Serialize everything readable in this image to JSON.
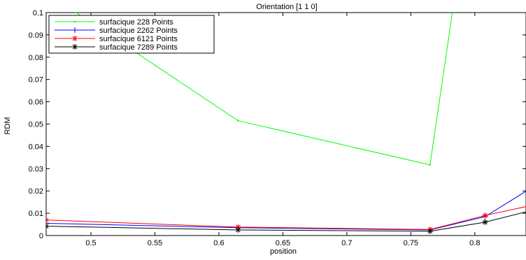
{
  "chart_data": {
    "type": "line",
    "title": "Orientation [1 1 0]",
    "xlabel": "position",
    "ylabel": "RDM",
    "xlim": [
      0.465,
      0.84
    ],
    "ylim": [
      0,
      0.1
    ],
    "x_ticks": [
      0.5,
      0.55,
      0.6,
      0.65,
      0.7,
      0.75,
      0.8
    ],
    "x_tick_labels": [
      "0.5",
      "0.55",
      "0.6",
      "0.65",
      "0.7",
      "0.75",
      "0.8"
    ],
    "y_ticks": [
      0,
      0.01,
      0.02,
      0.03,
      0.04,
      0.05,
      0.06,
      0.07,
      0.08,
      0.09,
      0.1
    ],
    "y_tick_labels": [
      "0",
      "0.01",
      "0.02",
      "0.03",
      "0.04",
      "0.05",
      "0.06",
      "0.07",
      "0.08",
      "0.09",
      "0.1"
    ],
    "grid": false,
    "legend_position": "top-left",
    "series": [
      {
        "name": "surfacique 228 Points",
        "color": "#00ff00",
        "marker": "point",
        "x": [
          0.465,
          0.615,
          0.765,
          0.808
        ],
        "y": [
          0.109,
          0.0515,
          0.0317,
          0.2
        ]
      },
      {
        "name": "surfacique 2262 Points",
        "color": "#0000ff",
        "marker": "plus",
        "x": [
          0.465,
          0.615,
          0.765,
          0.808,
          0.86
        ],
        "y": [
          0.0055,
          0.0035,
          0.0025,
          0.0085,
          0.027
        ]
      },
      {
        "name": "surfacique 6121 Points",
        "color": "#ff0000",
        "marker": "asterisk",
        "x": [
          0.465,
          0.615,
          0.765,
          0.808,
          0.86
        ],
        "y": [
          0.007,
          0.0038,
          0.0027,
          0.009,
          0.0155
        ]
      },
      {
        "name": "surfacique 7289 Points",
        "color": "#000000",
        "marker": "asterisk",
        "x": [
          0.465,
          0.615,
          0.765,
          0.808,
          0.86
        ],
        "y": [
          0.0042,
          0.0025,
          0.0019,
          0.006,
          0.0135
        ]
      }
    ]
  }
}
